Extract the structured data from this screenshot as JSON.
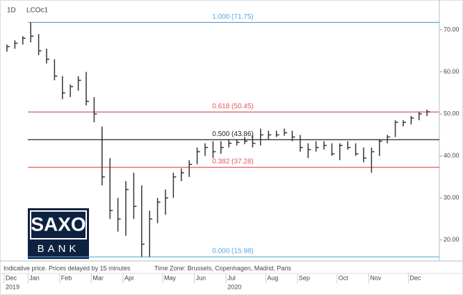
{
  "chart_data": {
    "type": "ohlc",
    "timeframe": "1D",
    "series": [
      {
        "name": "LCOc1",
        "color": "#333333",
        "high": [
          66.5,
          67.5,
          68.5,
          71.75,
          69,
          65.5,
          63,
          59,
          57,
          59,
          60,
          54,
          47,
          39.5,
          30,
          34,
          36,
          33,
          27,
          30,
          32,
          36,
          37,
          39,
          42,
          43,
          43.5,
          43.5,
          44,
          44,
          44.5,
          45,
          46.5,
          46,
          46,
          46.5,
          46,
          45,
          43,
          43.5,
          43.5,
          43,
          43,
          43.5,
          43,
          42,
          42,
          44,
          45,
          48.5,
          48.5,
          49.5,
          50.5,
          51
        ],
        "low": [
          64.8,
          65.5,
          66.5,
          67,
          64,
          62,
          58,
          53.5,
          54,
          55.5,
          52,
          48,
          33,
          25,
          22,
          21,
          25,
          16,
          15.98,
          24,
          26,
          30,
          34,
          35,
          38,
          40,
          39.5,
          40.5,
          42,
          42.5,
          42.8,
          42,
          42.5,
          44,
          44.5,
          44.8,
          43.5,
          41,
          39.5,
          41,
          41.5,
          40,
          39,
          41.5,
          40,
          38.5,
          36,
          40,
          43,
          44.5,
          47,
          47.5,
          48.5,
          49.5
        ],
        "close": [
          66,
          66.8,
          68,
          68.5,
          65,
          63,
          59,
          55,
          56.5,
          58,
          53,
          50,
          35,
          27,
          25,
          32,
          28,
          19,
          25,
          29,
          30,
          35,
          36,
          38,
          41,
          42,
          41,
          42,
          43,
          43.2,
          43.5,
          43,
          45,
          45,
          45,
          45.5,
          44.5,
          42,
          41.5,
          42,
          42.5,
          40.5,
          42.5,
          42,
          40.5,
          39.5,
          41,
          43.5,
          44.5,
          48,
          48,
          49,
          50,
          50.5
        ]
      }
    ],
    "categories": [
      "Dec",
      null,
      null,
      "Jan",
      null,
      null,
      null,
      "Feb",
      null,
      null,
      null,
      "Mar",
      null,
      null,
      null,
      "Apr",
      null,
      null,
      null,
      null,
      "May",
      null,
      null,
      null,
      "Jun",
      null,
      null,
      null,
      "Jul",
      null,
      null,
      null,
      null,
      "Aug",
      null,
      null,
      null,
      "Sep",
      null,
      null,
      null,
      null,
      "Oct",
      null,
      null,
      null,
      "Nov",
      null,
      null,
      null,
      null,
      "Dec",
      null,
      null
    ],
    "year_labels": [
      {
        "value": 0,
        "label": "2019"
      },
      {
        "value": 28,
        "label": "2020"
      }
    ],
    "ylim": [
      15,
      77.1
    ],
    "yticks": [
      {
        "value": 20,
        "label": "20.00"
      },
      {
        "value": 30,
        "label": "30.00"
      },
      {
        "value": 40,
        "label": "40.00"
      },
      {
        "value": 50,
        "label": "50.00"
      },
      {
        "value": 60,
        "label": "60.00"
      },
      {
        "value": 70,
        "label": "70.00"
      }
    ],
    "levels": [
      {
        "value": 71.75,
        "label": "1.000 (71.75)",
        "color": "#5aa6e0"
      },
      {
        "value": 50.45,
        "label": "0.618 (50.45)",
        "color": "#e05858"
      },
      {
        "value": 43.86,
        "label": "0.500 (43.86)",
        "color": "#222222"
      },
      {
        "value": 37.28,
        "label": "0.382 (37.28)",
        "color": "#e05858"
      },
      {
        "value": 15.98,
        "label": "0.000 (15.98)",
        "color": "#5aa6e0"
      }
    ]
  },
  "footer": {
    "disclaimer": "Indicative price. Prices delayed by 15 minutes",
    "timezone": "Time Zone: Brussels, Copenhagen, Madrid, Paris"
  },
  "logo": {
    "top": "SAXO",
    "bottom": "BANK"
  }
}
